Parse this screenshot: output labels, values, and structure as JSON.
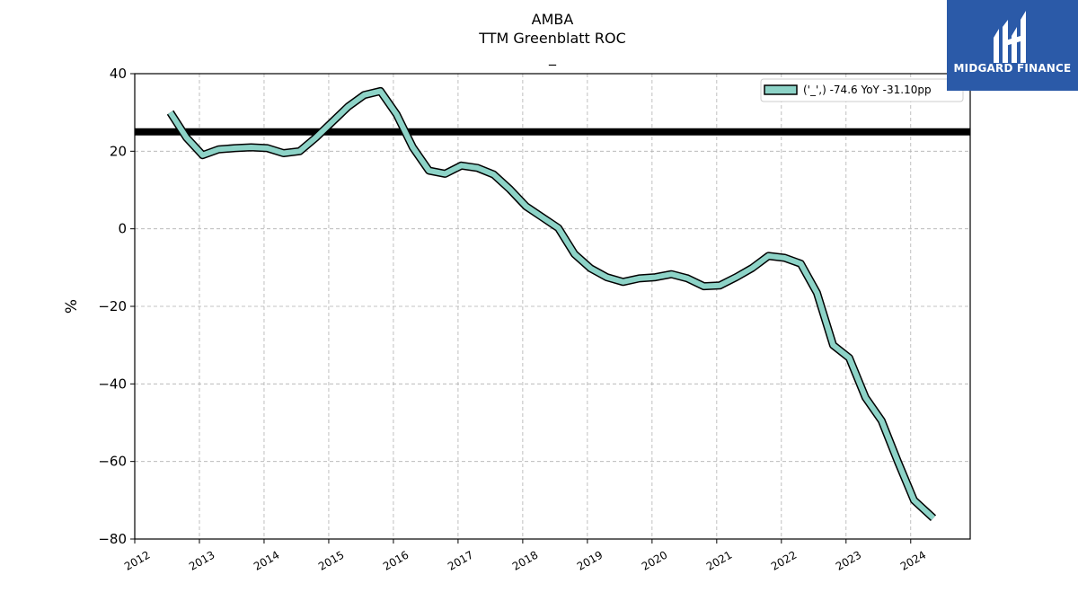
{
  "brand": {
    "name": "MIDGARD FINANCE",
    "bg_color": "#2b5aa8",
    "icon": "midgard-logo-icon"
  },
  "colors": {
    "series_fill": "#8dd3c7",
    "series_edge": "#000000",
    "benchmark": "#000000",
    "grid": "#b0b0b0"
  },
  "chart_data": {
    "type": "line",
    "title": "AMBA",
    "subtitle": "TTM Greenblatt ROC",
    "subtitle2": "_",
    "xlabel": "",
    "ylabel": "%",
    "xlim": [
      2012.0,
      2024.92
    ],
    "ylim": [
      -80,
      40
    ],
    "xticks": [
      "2012",
      "2013",
      "2014",
      "2015",
      "2016",
      "2017",
      "2018",
      "2019",
      "2020",
      "2021",
      "2022",
      "2023",
      "2024"
    ],
    "yticks": [
      "40",
      "20",
      "0",
      "−20",
      "−40",
      "−60",
      "−80"
    ],
    "grid": true,
    "legend_position": "top-right",
    "benchmark_line": 25,
    "series": [
      {
        "name": "('_',) -74.6 YoY -31.10pp",
        "x": [
          2012.55,
          2012.8,
          2013.05,
          2013.3,
          2013.55,
          2013.8,
          2014.05,
          2014.3,
          2014.55,
          2014.8,
          2015.05,
          2015.3,
          2015.55,
          2015.8,
          2016.05,
          2016.3,
          2016.55,
          2016.8,
          2017.05,
          2017.3,
          2017.55,
          2017.8,
          2018.05,
          2018.3,
          2018.55,
          2018.8,
          2019.05,
          2019.3,
          2019.55,
          2019.8,
          2020.05,
          2020.3,
          2020.55,
          2020.8,
          2021.05,
          2021.3,
          2021.55,
          2021.8,
          2022.05,
          2022.3,
          2022.55,
          2022.8,
          2023.05,
          2023.3,
          2023.55,
          2023.8,
          2024.05,
          2024.35
        ],
        "values": [
          30,
          23.5,
          19,
          20.5,
          20.8,
          21,
          20.8,
          19.5,
          20,
          23.5,
          27.5,
          31.5,
          34.5,
          35.5,
          29.5,
          21,
          15,
          14.2,
          16.3,
          15.7,
          14,
          10.2,
          5.8,
          3,
          0.2,
          -6.5,
          -10.2,
          -12.5,
          -13.7,
          -12.8,
          -12.5,
          -11.7,
          -12.8,
          -14.8,
          -14.6,
          -12.5,
          -10.1,
          -7,
          -7.5,
          -9,
          -16.5,
          -30,
          -33.3,
          -43.5,
          -49.5,
          -60,
          -70,
          -74.6
        ]
      }
    ]
  }
}
